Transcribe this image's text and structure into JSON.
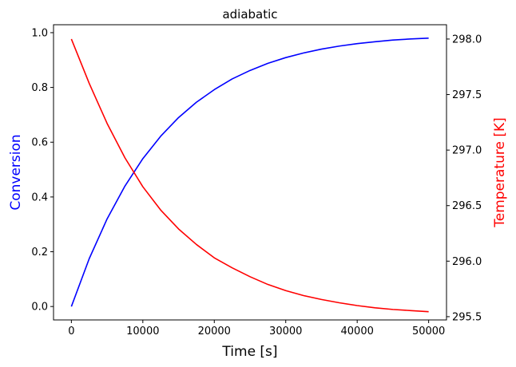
{
  "chart_data": {
    "type": "line",
    "title": "adiabatic",
    "xlabel": "Time [s]",
    "ylabel_left": "Conversion",
    "ylabel_right": "Temperature [K]",
    "xlim": [
      -2500,
      52500
    ],
    "ylim_left": [
      -0.049,
      1.029
    ],
    "ylim_right": [
      295.4707,
      298.1288
    ],
    "x_ticks": [
      0,
      10000,
      20000,
      30000,
      40000,
      50000
    ],
    "y_left_ticks": [
      0.0,
      0.2,
      0.4,
      0.6,
      0.8,
      1.0
    ],
    "y_left_tick_labels": [
      "0.0",
      "0.2",
      "0.4",
      "0.6",
      "0.8",
      "1.0"
    ],
    "y_right_ticks": [
      295.5,
      296.0,
      296.5,
      297.0,
      297.5,
      298.0
    ],
    "y_right_tick_labels": [
      "295.5",
      "296.0",
      "296.5",
      "297.0",
      "297.5",
      "298.0"
    ],
    "grid": false,
    "legend": "none",
    "colors": {
      "conversion": "#0000ff",
      "temperature": "#ff0000"
    },
    "series": [
      {
        "axis": "left",
        "color": "#0000ff",
        "x": [
          0,
          2500,
          5000,
          7500,
          10000,
          12500,
          15000,
          17500,
          20000,
          22500,
          25000,
          27500,
          30000,
          32500,
          35000,
          37500,
          40000,
          42500,
          45000,
          47500,
          50000
        ],
        "values": [
          0.0,
          0.175,
          0.32,
          0.44,
          0.54,
          0.622,
          0.69,
          0.746,
          0.792,
          0.831,
          0.862,
          0.888,
          0.909,
          0.926,
          0.94,
          0.951,
          0.96,
          0.967,
          0.973,
          0.977,
          0.98
        ]
      },
      {
        "axis": "right",
        "color": "#ff0000",
        "x": [
          0,
          2500,
          5000,
          7500,
          10000,
          12500,
          15000,
          17500,
          20000,
          22500,
          25000,
          27500,
          30000,
          32500,
          35000,
          37500,
          40000,
          42500,
          45000,
          47500,
          50000
        ],
        "values": [
          298.0,
          297.6,
          297.24,
          296.93,
          296.67,
          296.46,
          296.29,
          296.15,
          296.03,
          295.94,
          295.86,
          295.79,
          295.735,
          295.69,
          295.655,
          295.625,
          295.6,
          295.58,
          295.565,
          295.555,
          295.545
        ]
      }
    ]
  }
}
